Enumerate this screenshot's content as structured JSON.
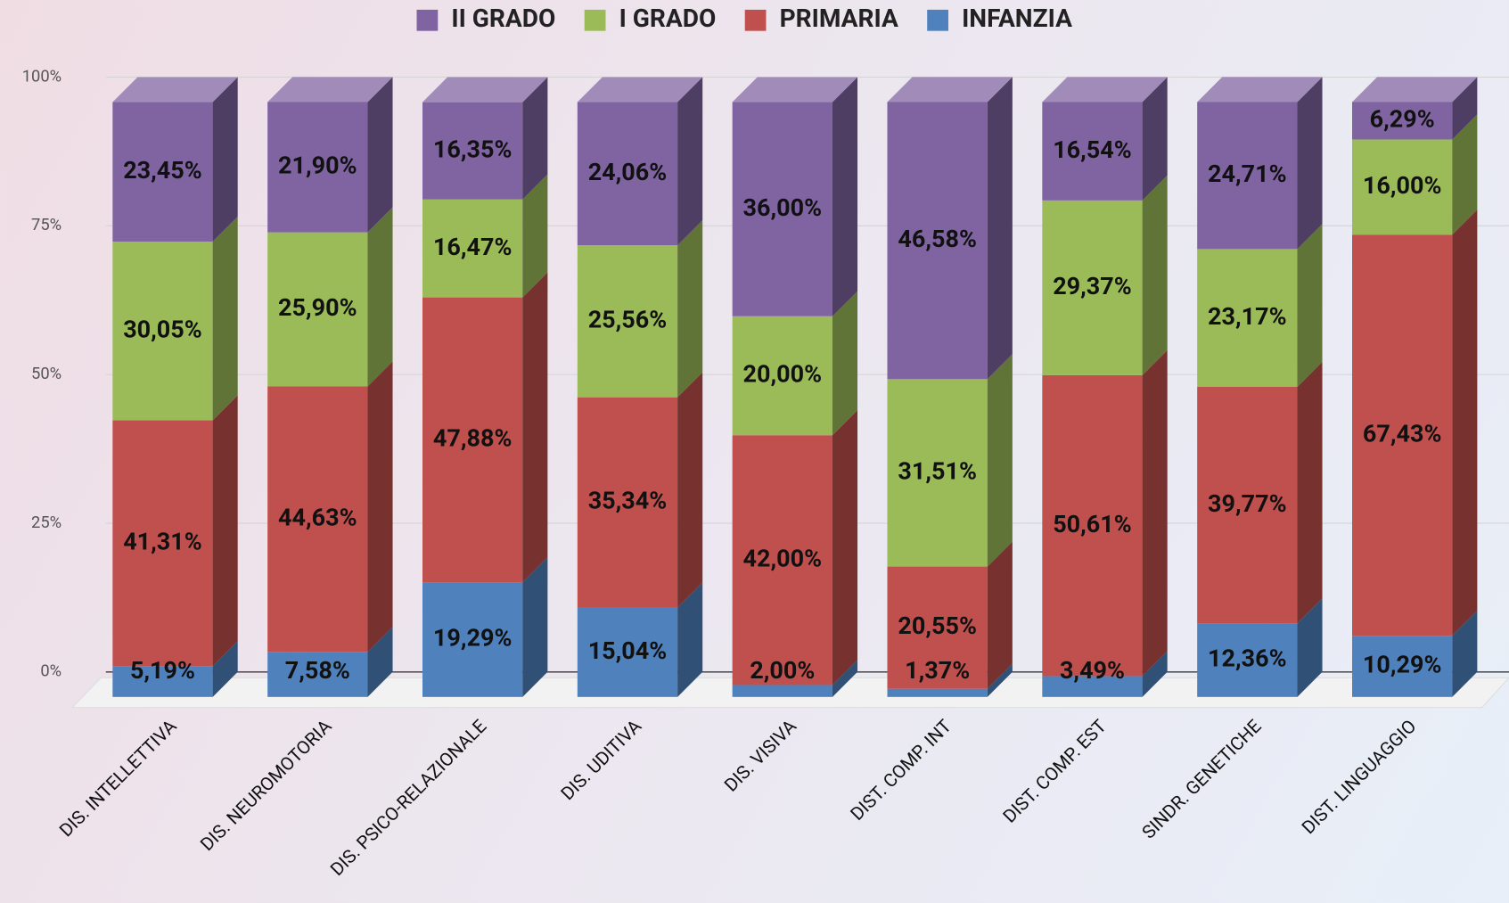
{
  "chart_data": {
    "type": "stacked_bar_3d",
    "categories": [
      "DIS. INTELLETTIVA",
      "DIS. NEUROMOTORIA",
      "DIS. PSICO-RELAZIONALE",
      "DIS. UDITIVA",
      "DIS. VISIVA",
      "DIST. COMP. INT",
      "DIST. COMP. EST",
      "SINDR. GENETICHE",
      "DIST. LINGUAGGIO"
    ],
    "series": [
      {
        "name": "INFANZIA",
        "color": "#4f81bd",
        "values": [
          5.19,
          7.58,
          19.29,
          15.04,
          2.0,
          1.37,
          3.49,
          12.36,
          10.29
        ],
        "value_labels": [
          "5,19%",
          "7,58%",
          "19,29%",
          "15,04%",
          "2,00%",
          "1,37%",
          "3,49%",
          "12,36%",
          "10,29%"
        ]
      },
      {
        "name": "PRIMARIA",
        "color": "#c0504d",
        "values": [
          41.31,
          44.63,
          47.88,
          35.34,
          42.0,
          20.55,
          50.61,
          39.77,
          67.43
        ],
        "value_labels": [
          "41,31%",
          "44,63%",
          "47,88%",
          "35,34%",
          "42,00%",
          "20,55%",
          "50,61%",
          "39,77%",
          "67,43%"
        ]
      },
      {
        "name": "I GRADO",
        "color": "#9bbb59",
        "values": [
          30.05,
          25.9,
          16.47,
          25.56,
          20.0,
          31.51,
          29.37,
          23.17,
          16.0
        ],
        "value_labels": [
          "30,05%",
          "25,90%",
          "16,47%",
          "25,56%",
          "20,00%",
          "31,51%",
          "29,37%",
          "23,17%",
          "16,00%"
        ]
      },
      {
        "name": "II GRADO",
        "color": "#8064a2",
        "values": [
          23.45,
          21.9,
          16.35,
          24.06,
          36.0,
          46.58,
          16.54,
          24.71,
          6.29
        ],
        "value_labels": [
          "23,45%",
          "21,90%",
          "16,35%",
          "24,06%",
          "36,00%",
          "46,58%",
          "16,54%",
          "24,71%",
          "6,29%"
        ]
      }
    ],
    "ylim": [
      0,
      100
    ],
    "yticks": [
      {
        "value": 0,
        "label": "0%"
      },
      {
        "value": 25,
        "label": "25%"
      },
      {
        "value": 50,
        "label": "50%"
      },
      {
        "value": 75,
        "label": "75%"
      },
      {
        "value": 100,
        "label": "100%"
      }
    ],
    "grid": true,
    "legend": "top"
  }
}
